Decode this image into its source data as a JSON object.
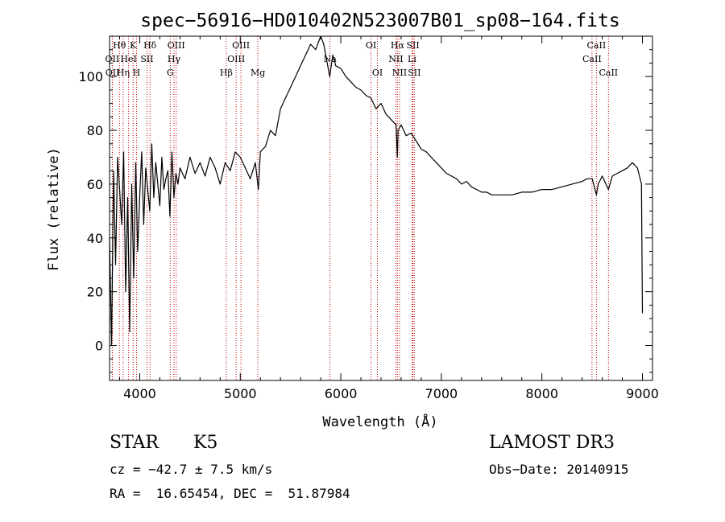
{
  "chart_data": {
    "type": "line",
    "title": "spec−56916−HD010402N523007B01_sp08−164.fits",
    "xlabel": "Wavelength (Å)",
    "ylabel": "Flux (relative)",
    "xlim": [
      3700,
      9100
    ],
    "ylim": [
      -13,
      115
    ],
    "x_ticks": [
      4000,
      5000,
      6000,
      7000,
      8000,
      9000
    ],
    "y_ticks": [
      0,
      20,
      40,
      60,
      80,
      100
    ],
    "series": [
      {
        "name": "flux",
        "x": [
          3700,
          3720,
          3740,
          3760,
          3780,
          3800,
          3820,
          3840,
          3860,
          3880,
          3900,
          3920,
          3940,
          3960,
          3980,
          4000,
          4020,
          4040,
          4060,
          4080,
          4100,
          4120,
          4140,
          4160,
          4180,
          4200,
          4220,
          4240,
          4260,
          4280,
          4300,
          4320,
          4340,
          4360,
          4380,
          4400,
          4450,
          4500,
          4550,
          4600,
          4650,
          4700,
          4750,
          4800,
          4850,
          4900,
          4950,
          5000,
          5050,
          5100,
          5150,
          5180,
          5200,
          5250,
          5300,
          5350,
          5400,
          5450,
          5500,
          5550,
          5600,
          5650,
          5700,
          5750,
          5800,
          5830,
          5860,
          5890,
          5920,
          5950,
          6000,
          6050,
          6100,
          6150,
          6200,
          6250,
          6300,
          6350,
          6400,
          6450,
          6500,
          6550,
          6563,
          6570,
          6600,
          6650,
          6700,
          6750,
          6800,
          6850,
          6900,
          6950,
          7000,
          7050,
          7100,
          7150,
          7200,
          7250,
          7300,
          7350,
          7400,
          7450,
          7500,
          7600,
          7700,
          7800,
          7900,
          8000,
          8100,
          8200,
          8300,
          8400,
          8450,
          8500,
          8542,
          8560,
          8600,
          8662,
          8700,
          8750,
          8800,
          8850,
          8900,
          8950,
          8990,
          9000
        ],
        "values": [
          40,
          0,
          65,
          30,
          70,
          58,
          45,
          72,
          20,
          55,
          5,
          60,
          25,
          68,
          35,
          55,
          72,
          45,
          66,
          58,
          50,
          75,
          55,
          68,
          60,
          52,
          70,
          58,
          62,
          65,
          48,
          72,
          55,
          64,
          60,
          66,
          62,
          70,
          64,
          68,
          63,
          70,
          66,
          60,
          68,
          65,
          72,
          70,
          66,
          62,
          68,
          58,
          72,
          74,
          80,
          78,
          88,
          92,
          96,
          100,
          104,
          108,
          112,
          110,
          116,
          112,
          106,
          100,
          108,
          104,
          103,
          100,
          98,
          96,
          95,
          93,
          92,
          88,
          90,
          86,
          84,
          82,
          70,
          80,
          82,
          78,
          79,
          76,
          73,
          72,
          70,
          68,
          66,
          64,
          63,
          62,
          60,
          61,
          59,
          58,
          57,
          57,
          56,
          56,
          56,
          57,
          57,
          58,
          58,
          59,
          60,
          61,
          62,
          62,
          56,
          60,
          63,
          58,
          63,
          64,
          65,
          66,
          68,
          66,
          60,
          12
        ]
      }
    ],
    "lines": [
      {
        "label": "Hθ",
        "x": 3798,
        "row": 0
      },
      {
        "label": "OII",
        "x": 3727,
        "row": 1
      },
      {
        "label": "OII",
        "x": 3729,
        "row": 2
      },
      {
        "label": "Hη",
        "x": 3835,
        "row": 2
      },
      {
        "label": "HeI",
        "x": 3889,
        "row": 1
      },
      {
        "label": "K",
        "x": 3934,
        "row": 0
      },
      {
        "label": "H",
        "x": 3968,
        "row": 2
      },
      {
        "label": "SII",
        "x": 4072,
        "row": 1
      },
      {
        "label": "Hδ",
        "x": 4102,
        "row": 0
      },
      {
        "label": "OIII",
        "x": 4363,
        "row": 0
      },
      {
        "label": "Hγ",
        "x": 4341,
        "row": 1
      },
      {
        "label": "G",
        "x": 4304,
        "row": 2
      },
      {
        "label": "Hβ",
        "x": 4861,
        "row": 2
      },
      {
        "label": "OIII",
        "x": 4959,
        "row": 1
      },
      {
        "label": "OIII",
        "x": 5007,
        "row": 0
      },
      {
        "label": "Mg",
        "x": 5175,
        "row": 2
      },
      {
        "label": "Na",
        "x": 5893,
        "row": 1
      },
      {
        "label": "OI",
        "x": 6300,
        "row": 0
      },
      {
        "label": "OI",
        "x": 6364,
        "row": 2
      },
      {
        "label": "Hα",
        "x": 6563,
        "row": 0
      },
      {
        "label": "NII",
        "x": 6548,
        "row": 1
      },
      {
        "label": "NII",
        "x": 6584,
        "row": 2
      },
      {
        "label": "SII",
        "x": 6717,
        "row": 0
      },
      {
        "label": "Li",
        "x": 6708,
        "row": 1
      },
      {
        "label": "SII",
        "x": 6731,
        "row": 2
      },
      {
        "label": "CaII",
        "x": 8542,
        "row": 0
      },
      {
        "label": "CaII",
        "x": 8498,
        "row": 1
      },
      {
        "label": "CaII",
        "x": 8662,
        "row": 2
      }
    ]
  },
  "info": {
    "class": "STAR",
    "subclass": "K5",
    "survey": "LAMOST DR3",
    "cz": "cz = −42.7 ± 7.5 km/s",
    "obs_date": "Obs−Date: 20140915",
    "coords": "RA =  16.65454, DEC =  51.87984"
  },
  "colors": {
    "line_marker": "#c00000",
    "spectrum": "#000000"
  }
}
